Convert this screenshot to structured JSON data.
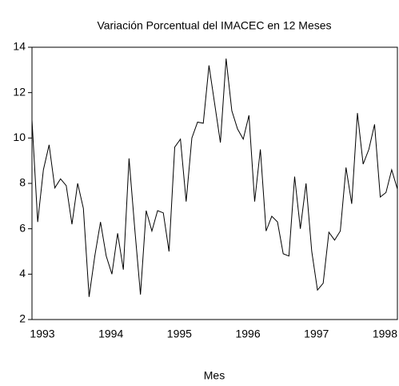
{
  "chart_data": {
    "type": "line",
    "title": "Variación Porcentual del IMACEC en 12 Meses",
    "x_label": "Mes",
    "categories": [
      "1993",
      null,
      null,
      null,
      null,
      null,
      null,
      null,
      null,
      null,
      null,
      null,
      "1994",
      null,
      null,
      null,
      null,
      null,
      null,
      null,
      null,
      null,
      null,
      null,
      "1995",
      null,
      null,
      null,
      null,
      null,
      null,
      null,
      null,
      null,
      null,
      null,
      "1996",
      null,
      null,
      null,
      null,
      null,
      null,
      null,
      null,
      null,
      null,
      null,
      "1997",
      null,
      null,
      null,
      null,
      null,
      null,
      null,
      null,
      null,
      null,
      null,
      "1998",
      null,
      null,
      null,
      null
    ],
    "series": [
      {
        "color": "#000000",
        "values": [
          10.8,
          6.3,
          8.6,
          9.7,
          7.8,
          8.2,
          7.9,
          6.2,
          8.0,
          6.9,
          3.0,
          4.8,
          6.3,
          4.8,
          4.0,
          5.8,
          4.2,
          9.1,
          6.0,
          3.1,
          6.8,
          5.9,
          6.8,
          6.7,
          5.0,
          9.6,
          9.95,
          7.2,
          10.0,
          10.7,
          10.65,
          13.2,
          11.5,
          9.8,
          13.5,
          11.2,
          10.4,
          9.95,
          11.0,
          7.2,
          9.5,
          5.9,
          6.55,
          6.3,
          4.9,
          4.8,
          8.3,
          6.0,
          8.0,
          5.0,
          3.3,
          3.6,
          5.85,
          5.5,
          5.9,
          8.7,
          7.1,
          11.1,
          8.85,
          9.5,
          10.6,
          7.4,
          7.6,
          8.6,
          7.75
        ]
      }
    ],
    "ylim": [
      2,
      14
    ],
    "yticks": [
      2,
      4,
      6,
      8,
      10,
      12,
      14
    ],
    "grid": false
  }
}
